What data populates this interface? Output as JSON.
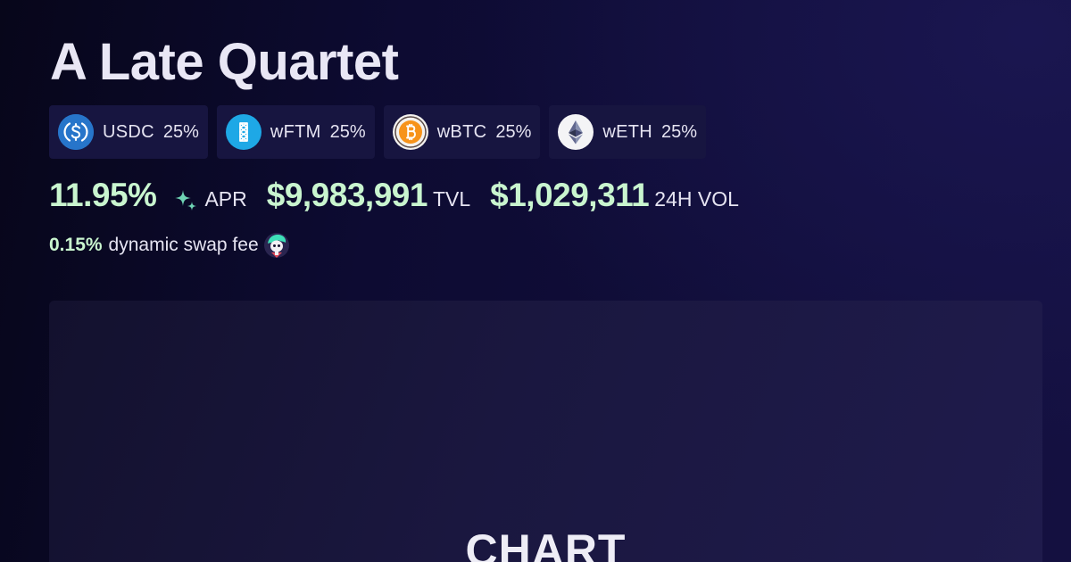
{
  "pool": {
    "title": "A Late Quartet"
  },
  "tokens": [
    {
      "symbol": "USDC",
      "weight": "25%",
      "icon": "usdc-icon",
      "color": "#2775ca"
    },
    {
      "symbol": "wFTM",
      "weight": "25%",
      "icon": "fantom-icon",
      "color": "#1ea8e6"
    },
    {
      "symbol": "wBTC",
      "weight": "25%",
      "icon": "bitcoin-icon",
      "color": "#f7931a"
    },
    {
      "symbol": "wETH",
      "weight": "25%",
      "icon": "ethereum-icon",
      "color": "#627eea"
    }
  ],
  "stats": {
    "apr_value": "11.95%",
    "apr_label": "APR",
    "tvl_value": "$9,983,991",
    "tvl_label": "TVL",
    "vol_value": "$1,029,311",
    "vol_label": "24H VOL"
  },
  "fee": {
    "value": "0.15%",
    "label": "dynamic swap fee"
  },
  "chart": {
    "placeholder": "CHART"
  },
  "colors": {
    "accent_green": "#c9f5cf",
    "chip_background": "#171540",
    "sparkle": "#6fd3b4"
  }
}
